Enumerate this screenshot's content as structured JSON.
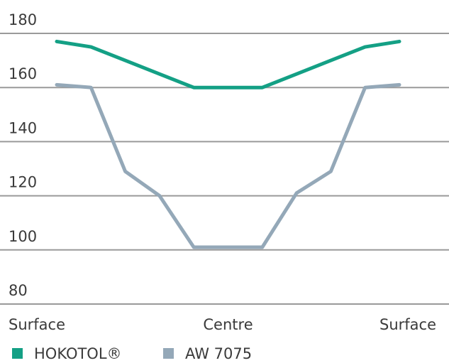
{
  "chart_data": {
    "type": "line",
    "categories": [
      "Surface",
      null,
      null,
      null,
      null,
      "Centre",
      null,
      null,
      null,
      null,
      "Surface"
    ],
    "series": [
      {
        "name": "HOKOTOL®",
        "color": "#14a085",
        "values": [
          177,
          175,
          170,
          165,
          160,
          160,
          160,
          165,
          170,
          175,
          177
        ]
      },
      {
        "name": "AW 7075",
        "color": "#94a8b8",
        "values": [
          161,
          160,
          129,
          120,
          101,
          101,
          101,
          121,
          129,
          160,
          161
        ]
      }
    ],
    "ylim": [
      80,
      180
    ],
    "yticks": [
      80,
      100,
      120,
      140,
      160,
      180
    ],
    "grid": true
  }
}
